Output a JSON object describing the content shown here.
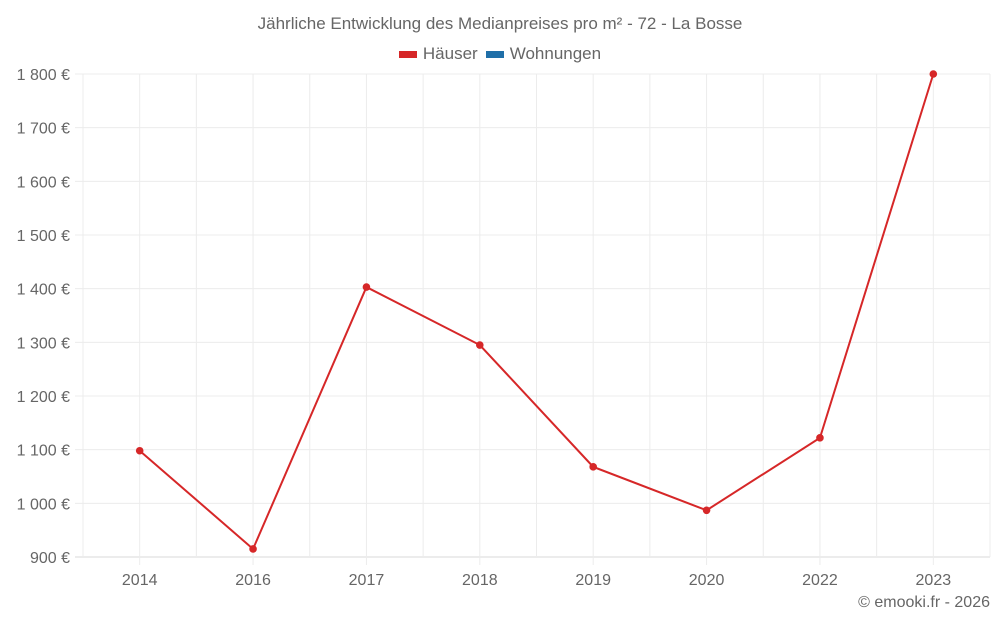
{
  "chart_data": {
    "type": "line",
    "title": "Jährliche Entwicklung des Medianpreises pro m² - 72 - La Bosse",
    "xlabel": "",
    "ylabel": "",
    "categories": [
      "2014",
      "2016",
      "2017",
      "2018",
      "2019",
      "2020",
      "2022",
      "2023"
    ],
    "series": [
      {
        "name": "Häuser",
        "color": "#d62728",
        "values": [
          1098,
          915,
          1403,
          1295,
          1068,
          987,
          1122,
          1800
        ]
      },
      {
        "name": "Wohnungen",
        "color": "#1f6fa8",
        "values": []
      }
    ],
    "ylim": [
      900,
      1800
    ],
    "yticks": [
      "1 800 €",
      "1 700 €",
      "1 600 €",
      "1 500 €",
      "1 400 €",
      "1 300 €",
      "1 200 €",
      "1 100 €",
      "1 000 €",
      "900 €"
    ],
    "grid": true,
    "legend_position": "top"
  },
  "title": "Jährliche Entwicklung des Medianpreises pro m² - 72 - La Bosse",
  "legend": [
    {
      "label": "Häuser",
      "color": "#d62728"
    },
    {
      "label": "Wohnungen",
      "color": "#1f6fa8"
    }
  ],
  "credit": "© emooki.fr - 2026"
}
